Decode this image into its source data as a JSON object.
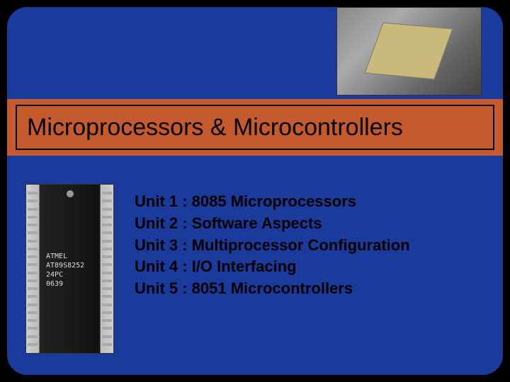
{
  "slide": {
    "title": "Microprocessors & Microcontrollers",
    "background_color": "#1a3a9c",
    "title_band_color": "#c45a2e",
    "title_fontsize": 34,
    "unit_fontsize": 22,
    "chip_label": "ATMEL\nAT89S8252\n24PC\n0639",
    "units": [
      "Unit 1 : 8085 Microprocessors",
      "Unit 2 : Software Aspects",
      "Unit 3 : Multiprocessor Configuration",
      "Unit 4 : I/O Interfacing",
      "Unit 5 : 8051 Microcontrollers"
    ]
  }
}
